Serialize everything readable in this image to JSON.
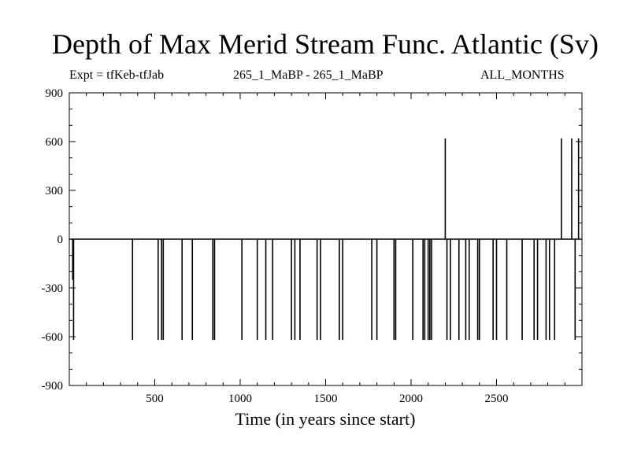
{
  "title": "Depth of Max Merid Stream Func. Atlantic (Sv)",
  "subtitles": {
    "left": "Expt = tfKeb-tfJab",
    "center": "265_1_MaBP - 265_1_MaBP",
    "right": "ALL_MONTHS"
  },
  "chart_data": {
    "type": "line",
    "title": "Depth of Max Merid Stream Func. Atlantic (Sv)",
    "xlabel": "Time (in years since start)",
    "ylabel": "",
    "xlim": [
      0,
      3000
    ],
    "ylim": [
      -900,
      900
    ],
    "x_ticks": [
      500,
      1000,
      1500,
      2000,
      2500
    ],
    "x_tick_labels": [
      "500",
      "1000",
      "1500",
      "2000",
      "2500"
    ],
    "y_ticks": [
      -900,
      -600,
      -300,
      0,
      300,
      600,
      900
    ],
    "y_tick_labels": [
      "-900",
      "-600",
      "-300",
      "0",
      "300",
      "600",
      "900"
    ],
    "grid": false,
    "baseline": 0,
    "spikes": [
      {
        "x": 20,
        "y": -250
      },
      {
        "x": 25,
        "y": -620
      },
      {
        "x": 370,
        "y": -620
      },
      {
        "x": 520,
        "y": -620
      },
      {
        "x": 540,
        "y": -620
      },
      {
        "x": 550,
        "y": -620
      },
      {
        "x": 660,
        "y": -620
      },
      {
        "x": 720,
        "y": -620
      },
      {
        "x": 840,
        "y": -620
      },
      {
        "x": 850,
        "y": -620
      },
      {
        "x": 1010,
        "y": -620
      },
      {
        "x": 1100,
        "y": -620
      },
      {
        "x": 1150,
        "y": -620
      },
      {
        "x": 1190,
        "y": -620
      },
      {
        "x": 1300,
        "y": -620
      },
      {
        "x": 1320,
        "y": -620
      },
      {
        "x": 1350,
        "y": -620
      },
      {
        "x": 1450,
        "y": -620
      },
      {
        "x": 1470,
        "y": -620
      },
      {
        "x": 1580,
        "y": -620
      },
      {
        "x": 1600,
        "y": -620
      },
      {
        "x": 1770,
        "y": -620
      },
      {
        "x": 1800,
        "y": -620
      },
      {
        "x": 1900,
        "y": -620
      },
      {
        "x": 1910,
        "y": -620
      },
      {
        "x": 2010,
        "y": -620
      },
      {
        "x": 2070,
        "y": -620
      },
      {
        "x": 2080,
        "y": -620
      },
      {
        "x": 2100,
        "y": -620
      },
      {
        "x": 2110,
        "y": -620
      },
      {
        "x": 2120,
        "y": -620
      },
      {
        "x": 2200,
        "y": 620
      },
      {
        "x": 2210,
        "y": -620
      },
      {
        "x": 2230,
        "y": -620
      },
      {
        "x": 2280,
        "y": -620
      },
      {
        "x": 2320,
        "y": -620
      },
      {
        "x": 2340,
        "y": -620
      },
      {
        "x": 2390,
        "y": -620
      },
      {
        "x": 2400,
        "y": -620
      },
      {
        "x": 2480,
        "y": -620
      },
      {
        "x": 2500,
        "y": -620
      },
      {
        "x": 2560,
        "y": -620
      },
      {
        "x": 2650,
        "y": -620
      },
      {
        "x": 2720,
        "y": -620
      },
      {
        "x": 2740,
        "y": -620
      },
      {
        "x": 2790,
        "y": -620
      },
      {
        "x": 2810,
        "y": -620
      },
      {
        "x": 2840,
        "y": -620
      },
      {
        "x": 2880,
        "y": 620
      },
      {
        "x": 2940,
        "y": 620
      },
      {
        "x": 2960,
        "y": -620
      },
      {
        "x": 2980,
        "y": 620
      }
    ]
  }
}
